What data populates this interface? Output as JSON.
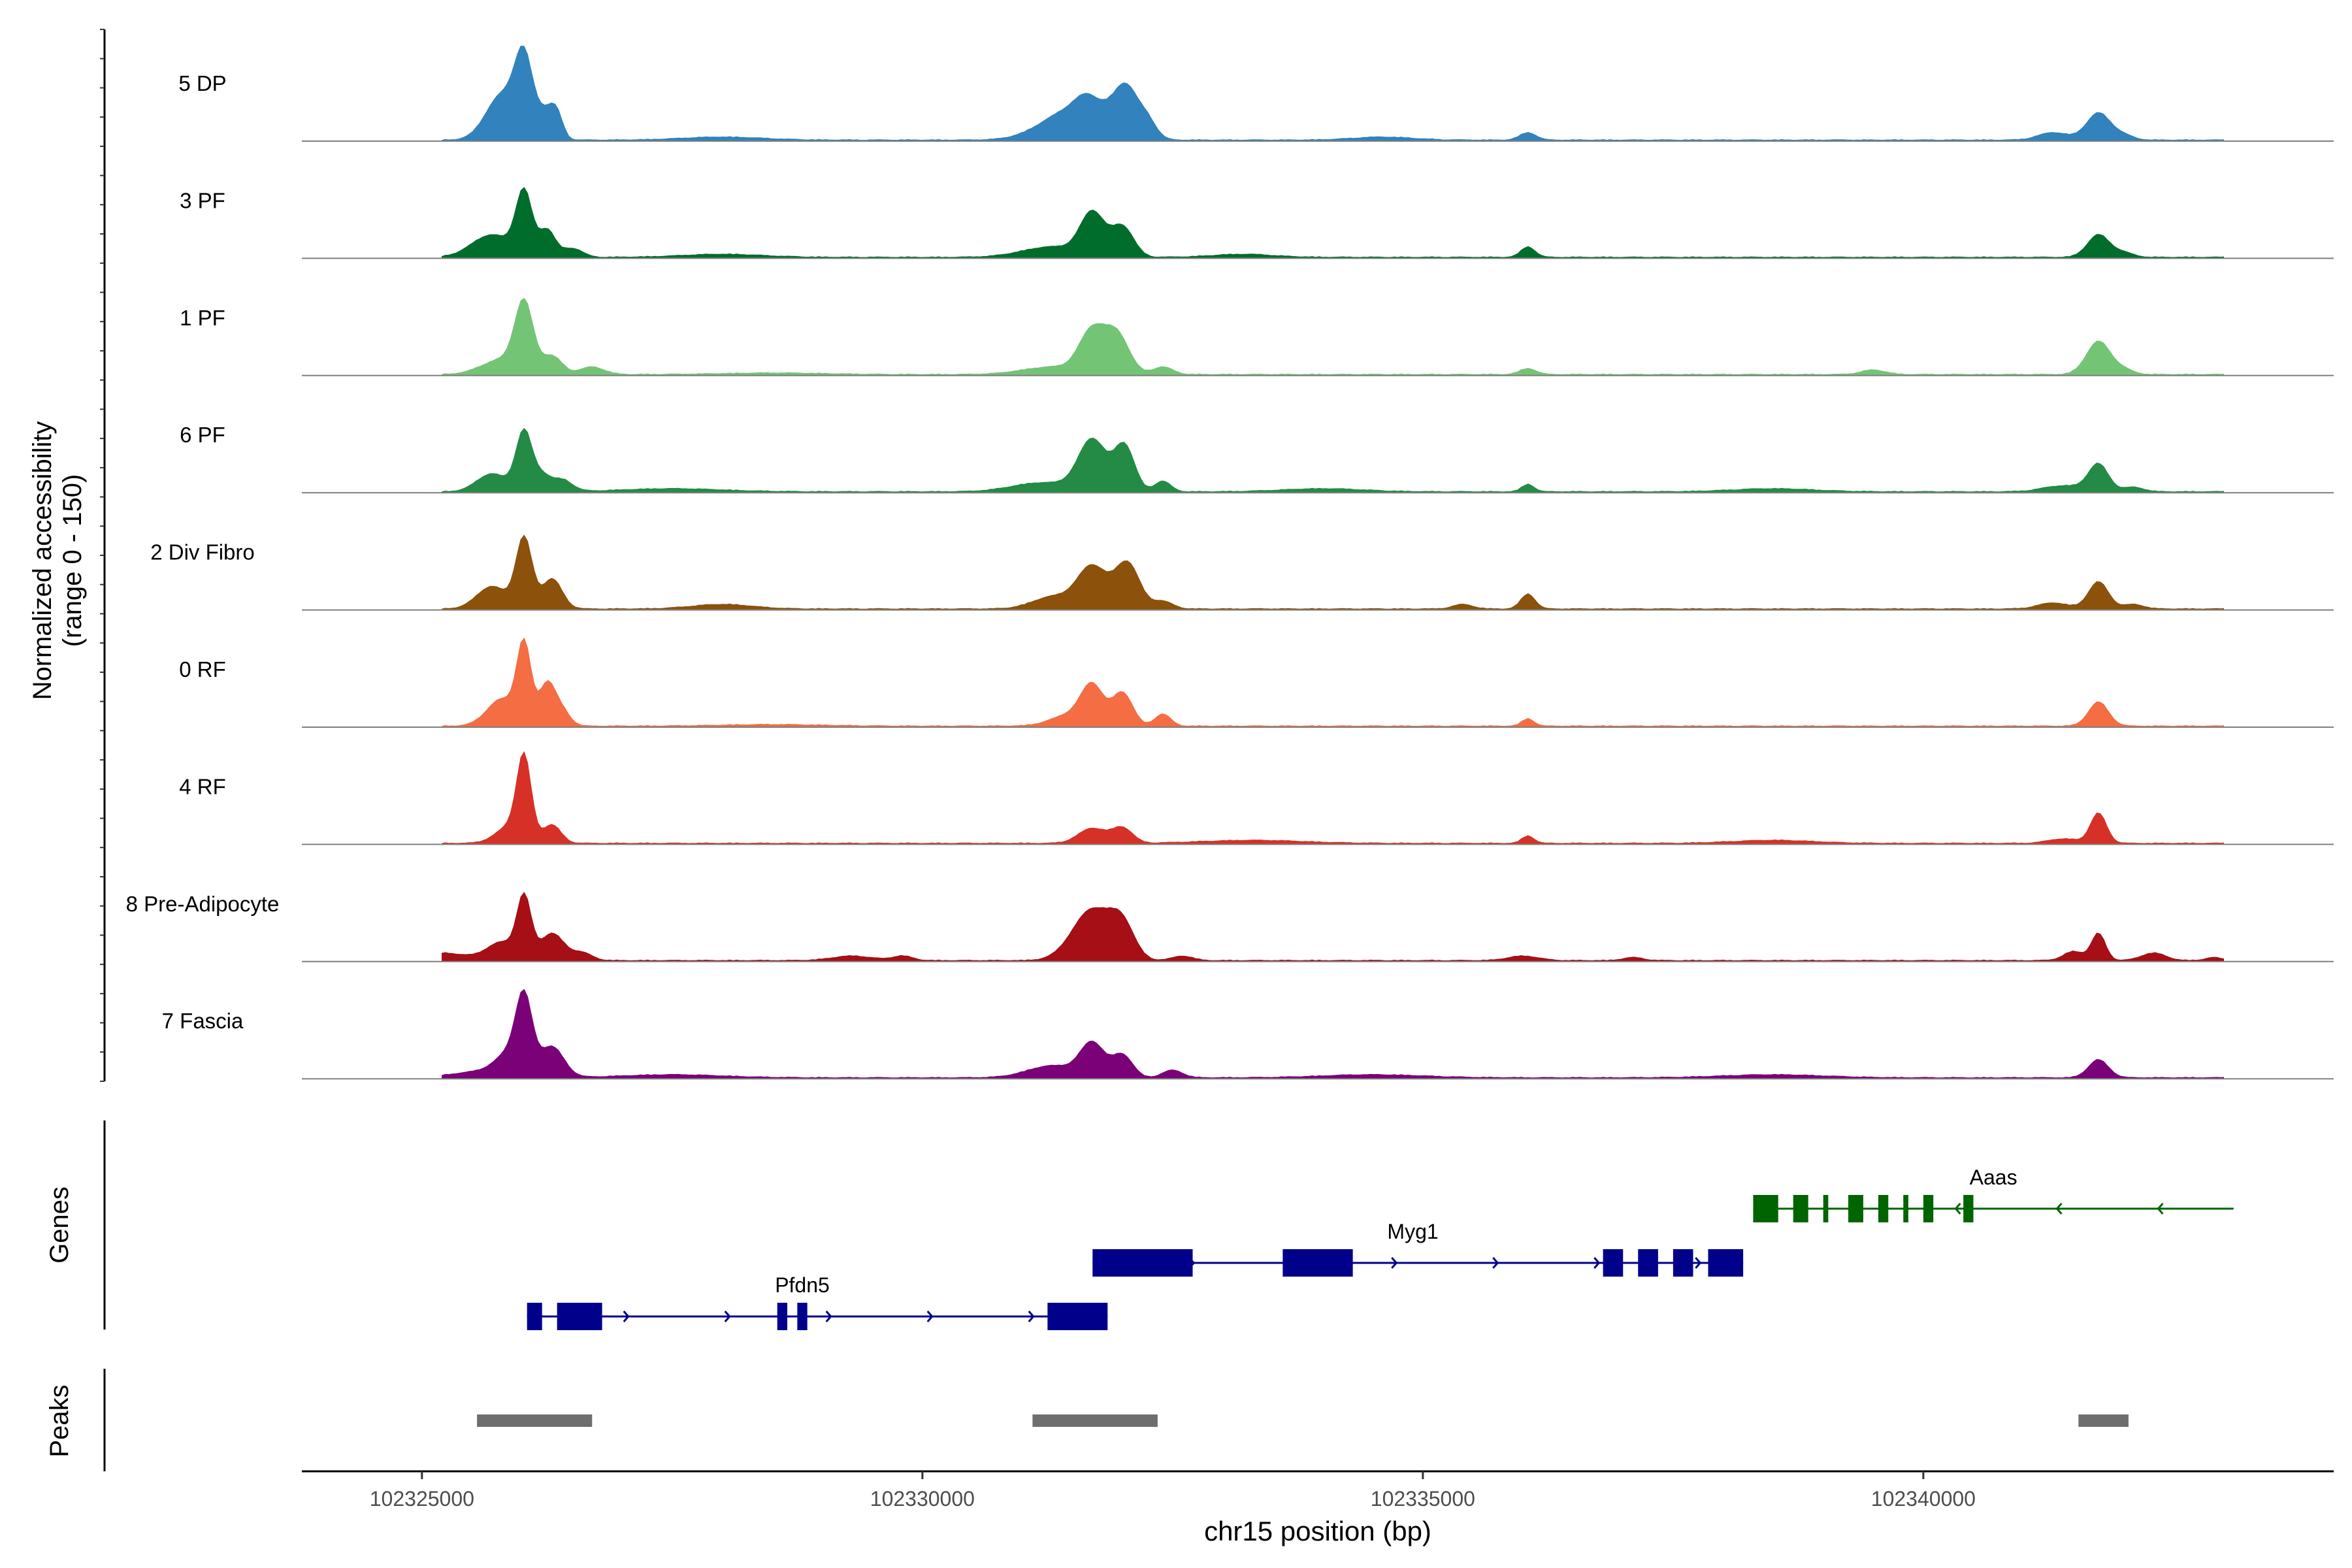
{
  "chart_data": {
    "type": "coverage",
    "y_axis_label_line1": "Normalized accessibility",
    "y_axis_label_line2": "(range 0 - 150)",
    "y_range": [
      0,
      150
    ],
    "x_label": "chr15 position (bp)",
    "x_range": [
      102323800,
      102344100
    ],
    "x_ticks": [
      102325000,
      102330000,
      102335000,
      102340000
    ],
    "x_tick_labels": [
      "102325000",
      "102330000",
      "102335000",
      "102340000"
    ],
    "tracks": [
      {
        "name": "5 DP",
        "color": "#3182bd",
        "peaks": [
          [
            102325800,
            30,
            160
          ],
          [
            102326020,
            50,
            90
          ],
          [
            102326250,
            18,
            90
          ],
          [
            102326350,
            12,
            60
          ],
          [
            102328000,
            2,
            400
          ],
          [
            102331500,
            20,
            300
          ],
          [
            102331650,
            12,
            120
          ],
          [
            102331900,
            10,
            120
          ],
          [
            102332050,
            28,
            110
          ],
          [
            102332250,
            12,
            90
          ],
          [
            102334600,
            2,
            300
          ],
          [
            102336050,
            5,
            80
          ],
          [
            102341300,
            5,
            150
          ],
          [
            102341750,
            18,
            120
          ],
          [
            102342000,
            3,
            100
          ]
        ]
      },
      {
        "name": "3 PF",
        "color": "#006d2c",
        "peaks": [
          [
            102325700,
            15,
            200
          ],
          [
            102326020,
            42,
            80
          ],
          [
            102326250,
            18,
            80
          ],
          [
            102326500,
            6,
            100
          ],
          [
            102328000,
            2,
            400
          ],
          [
            102331300,
            7,
            300
          ],
          [
            102331700,
            28,
            120
          ],
          [
            102332000,
            20,
            110
          ],
          [
            102333200,
            2,
            300
          ],
          [
            102336050,
            7,
            70
          ],
          [
            102341750,
            15,
            110
          ],
          [
            102342000,
            3,
            100
          ]
        ]
      },
      {
        "name": "1 PF",
        "color": "#74c476",
        "peaks": [
          [
            102325800,
            10,
            200
          ],
          [
            102326020,
            45,
            90
          ],
          [
            102326300,
            12,
            100
          ],
          [
            102326700,
            5,
            120
          ],
          [
            102328500,
            1,
            500
          ],
          [
            102331300,
            5,
            300
          ],
          [
            102331700,
            28,
            130
          ],
          [
            102331950,
            25,
            120
          ],
          [
            102332400,
            5,
            100
          ],
          [
            102336050,
            4,
            80
          ],
          [
            102339500,
            3,
            120
          ],
          [
            102341750,
            22,
            120
          ],
          [
            102342000,
            3,
            100
          ]
        ]
      },
      {
        "name": "6 PF",
        "color": "#238b45",
        "peaks": [
          [
            102325700,
            12,
            150
          ],
          [
            102326020,
            40,
            80
          ],
          [
            102326200,
            10,
            80
          ],
          [
            102326400,
            8,
            100
          ],
          [
            102327500,
            2,
            500
          ],
          [
            102331200,
            6,
            300
          ],
          [
            102331700,
            34,
            140
          ],
          [
            102332020,
            30,
            100
          ],
          [
            102332400,
            7,
            80
          ],
          [
            102334000,
            2,
            400
          ],
          [
            102336050,
            5,
            60
          ],
          [
            102338500,
            2,
            400
          ],
          [
            102341400,
            4,
            200
          ],
          [
            102341750,
            18,
            100
          ],
          [
            102342100,
            3,
            100
          ]
        ]
      },
      {
        "name": "2 Div Fibro",
        "color": "#8c510a",
        "peaks": [
          [
            102325700,
            15,
            150
          ],
          [
            102326020,
            47,
            80
          ],
          [
            102326300,
            20,
            100
          ],
          [
            102328000,
            3,
            300
          ],
          [
            102331300,
            8,
            200
          ],
          [
            102331700,
            28,
            150
          ],
          [
            102332050,
            30,
            120
          ],
          [
            102332400,
            5,
            100
          ],
          [
            102336050,
            10,
            70
          ],
          [
            102335400,
            3,
            100
          ],
          [
            102341300,
            4,
            150
          ],
          [
            102341750,
            18,
            100
          ],
          [
            102342100,
            3,
            100
          ]
        ]
      },
      {
        "name": "0 RF",
        "color": "#f46d43",
        "peaks": [
          [
            102325800,
            18,
            150
          ],
          [
            102326020,
            52,
            70
          ],
          [
            102326250,
            28,
            80
          ],
          [
            102326400,
            10,
            80
          ],
          [
            102328500,
            1,
            500
          ],
          [
            102331500,
            8,
            200
          ],
          [
            102331700,
            24,
            110
          ],
          [
            102332000,
            22,
            100
          ],
          [
            102332400,
            8,
            80
          ],
          [
            102336050,
            5,
            60
          ],
          [
            102341750,
            16,
            100
          ]
        ]
      },
      {
        "name": "4 RF",
        "color": "#d73027",
        "peaks": [
          [
            102325900,
            12,
            150
          ],
          [
            102326020,
            52,
            70
          ],
          [
            102326300,
            12,
            90
          ],
          [
            102331700,
            10,
            140
          ],
          [
            102332000,
            10,
            100
          ],
          [
            102333300,
            2,
            500
          ],
          [
            102336050,
            5,
            60
          ],
          [
            102338500,
            2,
            400
          ],
          [
            102341750,
            20,
            80
          ],
          [
            102341400,
            3,
            150
          ]
        ]
      },
      {
        "name": "8 Pre-Adipocyte",
        "color": "#a50f15",
        "peaks": [
          [
            102325200,
            5,
            250
          ],
          [
            102325800,
            12,
            150
          ],
          [
            102326020,
            40,
            70
          ],
          [
            102326300,
            18,
            120
          ],
          [
            102326600,
            5,
            100
          ],
          [
            102329300,
            3,
            200
          ],
          [
            102329800,
            3,
            100
          ],
          [
            102331700,
            34,
            200
          ],
          [
            102332000,
            20,
            120
          ],
          [
            102332600,
            3,
            100
          ],
          [
            102336000,
            3,
            150
          ],
          [
            102337100,
            2,
            100
          ],
          [
            102341500,
            6,
            100
          ],
          [
            102341750,
            18,
            70
          ],
          [
            102342300,
            5,
            120
          ],
          [
            102342900,
            2,
            80
          ]
        ]
      },
      {
        "name": "7 Fascia",
        "color": "#7a0177",
        "peaks": [
          [
            102325600,
            4,
            300
          ],
          [
            102325900,
            15,
            150
          ],
          [
            102326020,
            45,
            80
          ],
          [
            102326300,
            20,
            120
          ],
          [
            102327500,
            2,
            500
          ],
          [
            102331300,
            8,
            250
          ],
          [
            102331700,
            22,
            120
          ],
          [
            102332000,
            15,
            100
          ],
          [
            102332500,
            5,
            100
          ],
          [
            102334500,
            2,
            500
          ],
          [
            102338500,
            2,
            500
          ],
          [
            102341750,
            12,
            100
          ]
        ]
      }
    ],
    "genes_label": "Genes",
    "genes": [
      {
        "name": "Pfdn5",
        "strand": "+",
        "color": "#00008b",
        "row": 2,
        "start": 102326050,
        "end": 102331850,
        "label_x": 102328800,
        "exons": [
          [
            102326050,
            102326200
          ],
          [
            102326350,
            102326800
          ],
          [
            102328550,
            102328650
          ],
          [
            102328750,
            102328850
          ],
          [
            102331250,
            102331850
          ]
        ]
      },
      {
        "name": "Myg1",
        "strand": "+",
        "color": "#00008b",
        "row": 1,
        "start": 102331700,
        "end": 102338200,
        "label_x": 102334900,
        "exons": [
          [
            102331700,
            102332700
          ],
          [
            102333600,
            102334300
          ],
          [
            102336800,
            102337000
          ],
          [
            102337150,
            102337350
          ],
          [
            102337500,
            102337700
          ],
          [
            102337850,
            102338200
          ]
        ]
      },
      {
        "name": "Aaas",
        "strand": "-",
        "color": "#006400",
        "row": 0,
        "start": 102338300,
        "end": 102343100,
        "label_x": 102340700,
        "exons": [
          [
            102338300,
            102338550
          ],
          [
            102338700,
            102338850
          ],
          [
            102339000,
            102339050
          ],
          [
            102339250,
            102339400
          ],
          [
            102339550,
            102339650
          ],
          [
            102339800,
            102339850
          ],
          [
            102340000,
            102340100
          ],
          [
            102340400,
            102340500
          ]
        ]
      }
    ],
    "peaks_label": "Peaks",
    "peak_regions": [
      [
        102325550,
        102326700
      ],
      [
        102331100,
        102332350
      ],
      [
        102341550,
        102342050
      ]
    ]
  }
}
